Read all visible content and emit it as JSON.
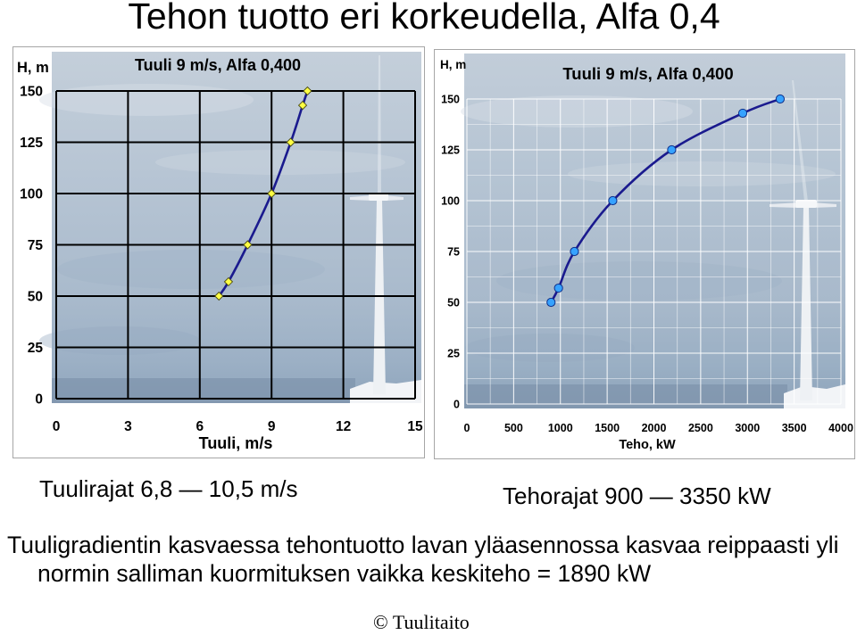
{
  "slide": {
    "title": "Tehon tuotto eri korkeudella, Alfa 0,4",
    "left_caption": "Tuulirajat 6,8 — 10,5 m/s",
    "right_caption": "Tehorajat 900 — 3350 kW",
    "body_lines": [
      "Tuuligradientin kasvaessa tehontuotto lavan yläasennossa kasvaa reippaasti yli",
      "normin salliman kuormituksen vaikka keskiteho = 1890 kW"
    ],
    "footer": "© Tuulitaito"
  },
  "chart_data": [
    {
      "type": "line",
      "title": "Tuuli 9 m/s, Alfa 0,400",
      "xlabel": "Tuuli, m/s",
      "ylabel": "H, m",
      "xlim": [
        0,
        15
      ],
      "ylim": [
        0,
        150
      ],
      "xticks": [
        0,
        3,
        6,
        9,
        12,
        15
      ],
      "yticks": [
        0,
        25,
        50,
        75,
        100,
        125,
        150
      ],
      "grid": true,
      "grid_color": "#000000",
      "series": [
        {
          "x": [
            6.8,
            7.2,
            8.0,
            9.0,
            9.8,
            10.3,
            10.5
          ],
          "y": [
            50,
            57,
            75,
            100,
            125,
            143,
            150
          ],
          "line_color": "#1a1a8e",
          "marker_color": "#ffff44"
        }
      ]
    },
    {
      "type": "line",
      "title": "Tuuli 9 m/s, Alfa 0,400",
      "xlabel": "Teho, kW",
      "ylabel": "H, m",
      "xlim": [
        0,
        4000
      ],
      "ylim": [
        0,
        150
      ],
      "xticks": [
        0,
        500,
        1000,
        1500,
        2000,
        2500,
        3000,
        3500,
        4000
      ],
      "yticks": [
        0,
        25,
        50,
        75,
        100,
        125,
        150
      ],
      "grid": true,
      "grid_color": "#ffffff",
      "series": [
        {
          "x": [
            900,
            980,
            1150,
            1560,
            2190,
            2950,
            3350
          ],
          "y": [
            50,
            57,
            75,
            100,
            125,
            143,
            150
          ],
          "line_color": "#1a1a8e",
          "marker_color": "#36a2ff"
        }
      ]
    }
  ]
}
